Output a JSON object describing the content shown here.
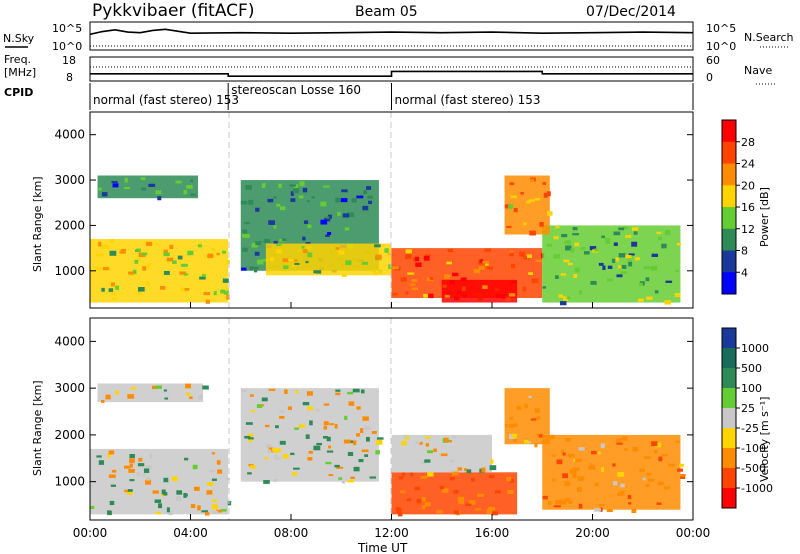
{
  "header": {
    "title": "Pykkvibaer (fitACF)",
    "beam": "Beam 05",
    "date": "07/Dec/2014"
  },
  "strip_labels": {
    "nsky": "N.Sky",
    "nsearch": "N.Search",
    "freq_line1": "Freq.",
    "freq_line2": "[MHz]",
    "nave": "Nave",
    "cpid": "CPID",
    "noise_ticks_left": [
      "10^5",
      "10^0"
    ],
    "noise_ticks_right": [
      "10^5",
      "10^0"
    ],
    "freq_ticks_left": [
      "18",
      "8"
    ],
    "freq_ticks_right": [
      "60",
      "0"
    ]
  },
  "cpid_segments": [
    {
      "label": "normal (fast stereo) 153",
      "start": 0.0,
      "end": 5.5
    },
    {
      "label": "stereoscan Losse 160",
      "start": 5.5,
      "end": 12.0
    },
    {
      "label": "normal (fast stereo) 153",
      "start": 12.0,
      "end": 24.0
    }
  ],
  "panels": {
    "ylabel": "Slant Range [km]",
    "yticks": [
      "4000",
      "3000",
      "2000",
      "1000"
    ],
    "xticks": [
      "00:00",
      "04:00",
      "08:00",
      "12:00",
      "16:00",
      "20:00",
      "00:00"
    ],
    "xlabel": "Time UT"
  },
  "colorbars": {
    "power": {
      "label": "Power [dB]",
      "ticks": [
        "28",
        "24",
        "20",
        "16",
        "12",
        "8",
        "4"
      ],
      "colors": [
        "#ff0000",
        "#ff4400",
        "#ff8c00",
        "#ffd400",
        "#66cc33",
        "#2e8b57",
        "#1a3a99",
        "#0000ff"
      ]
    },
    "velocity": {
      "label": "Velocity [m s⁻¹]",
      "ticks": [
        "1000",
        "500",
        "100",
        "25",
        "-25",
        "-100",
        "-500",
        "-1000"
      ],
      "colors": [
        "#1a3a99",
        "#1a6b5a",
        "#2e8b57",
        "#66cc33",
        "#c8c8c8",
        "#ffd400",
        "#ff8c00",
        "#ff4400",
        "#ff0000"
      ]
    }
  },
  "chart_data": [
    {
      "type": "line",
      "title": "Pykkvibaer (fitACF)",
      "subtitle": "Beam 05",
      "series": [
        {
          "name": "N.Sky",
          "x": [
            0,
            0.5,
            1,
            1.5,
            2,
            2.5,
            3,
            4,
            6,
            8,
            10,
            12,
            14,
            16,
            18,
            20,
            22,
            24
          ],
          "values": [
            2.8,
            3.3,
            3.6,
            3.2,
            3.1,
            3.5,
            3.7,
            3.0,
            3.1,
            3.0,
            3.1,
            3.2,
            3.1,
            3.2,
            3.0,
            3.1,
            3.2,
            3.1
          ]
        }
      ],
      "xlabel": "",
      "ylabel": "",
      "ylim": [
        0,
        5
      ]
    },
    {
      "type": "line",
      "series": [
        {
          "name": "Freq.",
          "x": [
            0,
            5.5,
            5.5,
            12,
            12,
            18,
            18,
            24
          ],
          "values": [
            11,
            11,
            10,
            10,
            12,
            12,
            11,
            11
          ]
        }
      ],
      "ylabel": "Freq. [MHz]",
      "ylim": [
        8,
        18
      ]
    },
    {
      "type": "heatmap",
      "ylabel": "Slant Range [km]",
      "xlabel": "",
      "xlim": [
        0,
        24
      ],
      "ylim": [
        180,
        4500
      ],
      "colorbar_label": "Power [dB]",
      "regions": [
        {
          "x": [
            0.0,
            5.5
          ],
          "y": [
            300,
            1700
          ],
          "value": 16
        },
        {
          "x": [
            0.3,
            4.3
          ],
          "y": [
            2600,
            3100
          ],
          "value": 8
        },
        {
          "x": [
            6.0,
            11.5
          ],
          "y": [
            1000,
            3000
          ],
          "value": 8
        },
        {
          "x": [
            7.0,
            12.0
          ],
          "y": [
            900,
            1600
          ],
          "value": 16
        },
        {
          "x": [
            12.0,
            18.0
          ],
          "y": [
            400,
            1500
          ],
          "value": 24
        },
        {
          "x": [
            14.0,
            17.0
          ],
          "y": [
            300,
            800
          ],
          "value": 28
        },
        {
          "x": [
            18.0,
            23.5
          ],
          "y": [
            300,
            2000
          ],
          "value": 12
        },
        {
          "x": [
            16.5,
            18.3
          ],
          "y": [
            1800,
            3100
          ],
          "value": 20
        }
      ]
    },
    {
      "type": "heatmap",
      "ylabel": "Slant Range [km]",
      "xlabel": "Time UT",
      "xlim": [
        0,
        24
      ],
      "ylim": [
        180,
        4500
      ],
      "colorbar_label": "Velocity [m s⁻¹]",
      "regions": [
        {
          "x": [
            0.3,
            4.5
          ],
          "y": [
            2700,
            3100
          ],
          "value": 0
        },
        {
          "x": [
            0.0,
            5.5
          ],
          "y": [
            300,
            1700
          ],
          "value": 0
        },
        {
          "x": [
            6.0,
            11.5
          ],
          "y": [
            1000,
            3000
          ],
          "value": 0
        },
        {
          "x": [
            12.0,
            17.0
          ],
          "y": [
            300,
            1200
          ],
          "value": -300
        },
        {
          "x": [
            12.0,
            16.0
          ],
          "y": [
            1200,
            2000
          ],
          "value": 0
        },
        {
          "x": [
            16.5,
            18.3
          ],
          "y": [
            1800,
            3000
          ],
          "value": -150
        },
        {
          "x": [
            18.0,
            23.5
          ],
          "y": [
            400,
            2000
          ],
          "value": -200
        }
      ]
    }
  ]
}
